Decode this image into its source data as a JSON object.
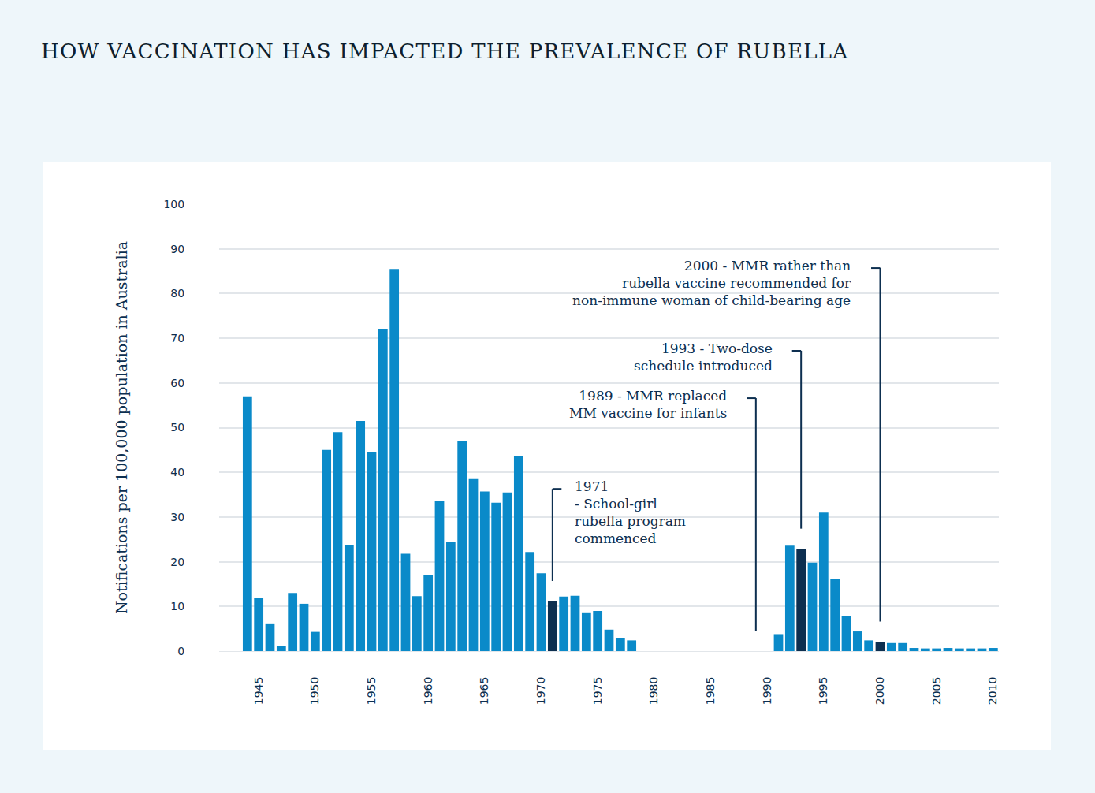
{
  "chart_data": {
    "type": "bar",
    "title": "HOW VACCINATION HAS IMPACTED THE PREVALENCE OF RUBELLA",
    "y_label": "Notifications per 100,000 population in Australia",
    "x": [
      1944,
      1945,
      1946,
      1947,
      1948,
      1949,
      1950,
      1951,
      1952,
      1953,
      1954,
      1955,
      1956,
      1957,
      1958,
      1959,
      1960,
      1961,
      1962,
      1963,
      1964,
      1965,
      1966,
      1967,
      1968,
      1969,
      1970,
      1971,
      1972,
      1973,
      1974,
      1975,
      1976,
      1977,
      1978,
      1979,
      1980,
      1981,
      1982,
      1983,
      1984,
      1985,
      1986,
      1987,
      1988,
      1989,
      1990,
      1991,
      1992,
      1993,
      1994,
      1995,
      1996,
      1997,
      1998,
      1999,
      2000,
      2001,
      2002,
      2003,
      2004,
      2005,
      2006,
      2007,
      2008,
      2009,
      2010
    ],
    "values": [
      57,
      12,
      6.2,
      1.1,
      13,
      10.6,
      4.3,
      45,
      49,
      23.7,
      51.5,
      44.5,
      72,
      85.5,
      21.8,
      12.3,
      17,
      33.5,
      24.5,
      47,
      38.5,
      35.7,
      33.2,
      35.5,
      43.6,
      22.2,
      17.4,
      11.2,
      12.2,
      12.4,
      8.5,
      9,
      4.8,
      2.9,
      2.4,
      null,
      null,
      null,
      null,
      null,
      null,
      null,
      null,
      null,
      null,
      null,
      null,
      3.8,
      23.6,
      22.9,
      19.8,
      31,
      16.2,
      7.9,
      4.4,
      2.4,
      2.1,
      1.8,
      1.8,
      0.7,
      0.6,
      0.6,
      0.7,
      0.6,
      0.6,
      0.6,
      0.7
    ],
    "colors": [
      "#0a8ac9",
      "#0a8ac9",
      "#0a8ac9",
      "#0a8ac9",
      "#0a8ac9",
      "#0a8ac9",
      "#0a8ac9",
      "#0a8ac9",
      "#0a8ac9",
      "#0a8ac9",
      "#0a8ac9",
      "#0a8ac9",
      "#0a8ac9",
      "#0a8ac9",
      "#0a8ac9",
      "#0a8ac9",
      "#0a8ac9",
      "#0a8ac9",
      "#0a8ac9",
      "#0a8ac9",
      "#0a8ac9",
      "#0a8ac9",
      "#0a8ac9",
      "#0a8ac9",
      "#0a8ac9",
      "#0a8ac9",
      "#0a8ac9",
      "#0d2f50",
      "#0a8ac9",
      "#0a8ac9",
      "#0a8ac9",
      "#0a8ac9",
      "#0a8ac9",
      "#0a8ac9",
      "#0a8ac9",
      "#0a8ac9",
      "#0a8ac9",
      "#0a8ac9",
      "#0a8ac9",
      "#0a8ac9",
      "#0a8ac9",
      "#0a8ac9",
      "#0a8ac9",
      "#0a8ac9",
      "#0a8ac9",
      "#0a8ac9",
      "#0a8ac9",
      "#0a8ac9",
      "#0a8ac9",
      "#0d2f50",
      "#0a8ac9",
      "#0a8ac9",
      "#0a8ac9",
      "#0a8ac9",
      "#0a8ac9",
      "#0a8ac9",
      "#0d2f50",
      "#0a8ac9",
      "#0a8ac9",
      "#0a8ac9",
      "#0a8ac9",
      "#0a8ac9",
      "#0a8ac9",
      "#0a8ac9",
      "#0a8ac9",
      "#0a8ac9",
      "#0a8ac9"
    ],
    "xlim": [
      1941.5,
      2010.5
    ],
    "xticks": [
      1945,
      1950,
      1955,
      1960,
      1965,
      1970,
      1975,
      1980,
      1985,
      1990,
      1995,
      2000,
      2005,
      2010
    ],
    "ylim": [
      0,
      100
    ],
    "yticks": [
      0,
      10,
      20,
      30,
      40,
      50,
      60,
      70,
      80,
      90,
      100
    ],
    "grid": true,
    "annotations": [
      {
        "x": 1971,
        "lines": [
          "1971",
          "- School-girl",
          "rubella program",
          "commenced"
        ]
      },
      {
        "x": 1989,
        "lines": [
          "1989 - MMR replaced",
          "MM vaccine for infants"
        ]
      },
      {
        "x": 1993,
        "lines": [
          "1993 - Two-dose",
          "schedule introduced"
        ]
      },
      {
        "x": 2000,
        "lines": [
          "2000 - MMR rather than",
          "rubella vaccine recommended for",
          "non-immune woman of child-bearing age"
        ]
      }
    ]
  }
}
